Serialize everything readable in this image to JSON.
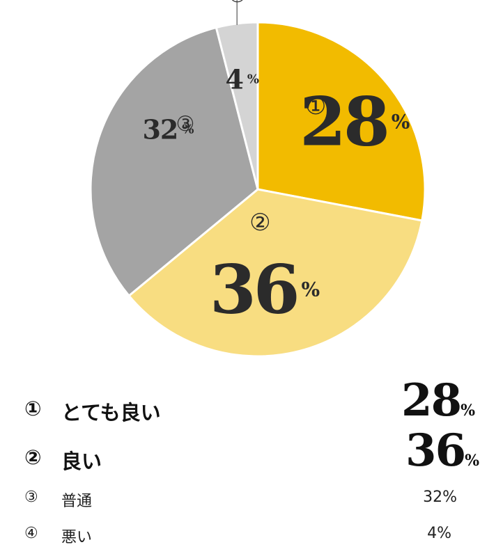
{
  "chart_data": {
    "type": "pie",
    "categories": [
      "とても良い",
      "良い",
      "普通",
      "悪い"
    ],
    "markers": [
      "①",
      "②",
      "③",
      "④"
    ],
    "values": [
      28,
      36,
      32,
      4
    ],
    "unit": "%",
    "colors": [
      "#F2BB00",
      "#F8DD81",
      "#A4A4A4",
      "#D4D4D4"
    ],
    "start_angle_deg": 0,
    "direction": "clockwise"
  },
  "legend": [
    {
      "marker": "①",
      "label": "とても良い",
      "value": "28",
      "unit": "%",
      "display": "28%"
    },
    {
      "marker": "②",
      "label": "良い",
      "value": "36",
      "unit": "%",
      "display": "36%"
    },
    {
      "marker": "③",
      "label": "普通",
      "value": "32",
      "unit": "%",
      "display": "32%"
    },
    {
      "marker": "④",
      "label": "悪い",
      "value": "4",
      "unit": "%",
      "display": "4%"
    }
  ]
}
